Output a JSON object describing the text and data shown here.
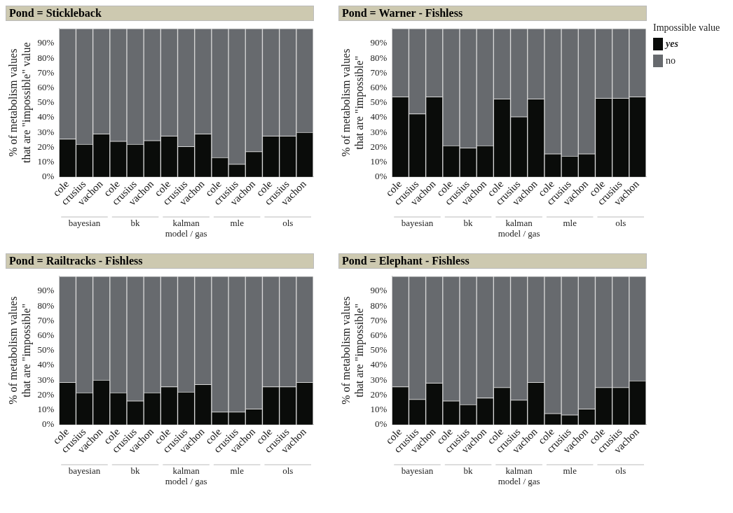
{
  "chart_data": [
    {
      "type": "bar",
      "title": "Pond = Stickleback",
      "xlabel": "model / gas",
      "ylabel": "% of metabolism values\nthat are \"impossible\" value",
      "categories": [
        "cole",
        "crusius",
        "vachon",
        "cole",
        "crusius",
        "vachon",
        "cole",
        "crusius",
        "vachon",
        "cole",
        "crusius",
        "vachon",
        "cole",
        "crusius",
        "vachon"
      ],
      "annotations": [
        "bayesian",
        "bk",
        "kalman",
        "mle",
        "ols"
      ],
      "stacked": true,
      "ylim": [
        0,
        100
      ],
      "yticks": [
        {
          "value": 0,
          "label": "0%"
        },
        {
          "value": 10,
          "label": "10%"
        },
        {
          "value": 20,
          "label": "20%"
        },
        {
          "value": 30,
          "label": "30%"
        },
        {
          "value": 40,
          "label": "40%"
        },
        {
          "value": 50,
          "label": "50%"
        },
        {
          "value": 60,
          "label": "60%"
        },
        {
          "value": 70,
          "label": "70%"
        },
        {
          "value": 80,
          "label": "80%"
        },
        {
          "value": 90,
          "label": "90%"
        }
      ],
      "grid": false,
      "legend": false,
      "series": [
        {
          "color": "#0a0c0a",
          "values": [
            25.5,
            22,
            29,
            24,
            22,
            24.5,
            27.5,
            20.5,
            29,
            13,
            8.5,
            17,
            27.5,
            27.5,
            30
          ]
        },
        {
          "color": "#676a6e",
          "values": [
            74.5,
            78,
            71,
            76,
            78,
            75.5,
            72.5,
            79.5,
            71,
            87,
            91.5,
            83,
            72.5,
            72.5,
            70
          ]
        }
      ]
    },
    {
      "type": "bar",
      "title": "Pond = Warner - Fishless",
      "xlabel": "model / gas",
      "ylabel": "% of metabolism values\nthat are \"impossible\"",
      "categories": [
        "cole",
        "crusius",
        "vachon",
        "cole",
        "crusius",
        "vachon",
        "cole",
        "crusius",
        "vachon",
        "cole",
        "crusius",
        "vachon",
        "cole",
        "crusius",
        "vachon"
      ],
      "annotations": [
        "bayesian",
        "bk",
        "kalman",
        "mle",
        "ols"
      ],
      "stacked": true,
      "ylim": [
        0,
        100
      ],
      "yticks": [
        {
          "value": 0,
          "label": "0%"
        },
        {
          "value": 10,
          "label": "10%"
        },
        {
          "value": 20,
          "label": "20%"
        },
        {
          "value": 30,
          "label": "30%"
        },
        {
          "value": 40,
          "label": "40%"
        },
        {
          "value": 50,
          "label": "50%"
        },
        {
          "value": 60,
          "label": "60%"
        },
        {
          "value": 70,
          "label": "70%"
        },
        {
          "value": 80,
          "label": "80%"
        },
        {
          "value": 90,
          "label": "90%"
        }
      ],
      "grid": false,
      "legend": "right",
      "legend_title": "Impossible value",
      "series": [
        {
          "name": "yes",
          "color": "#0a0c0a",
          "values": [
            54,
            42.5,
            54,
            21,
            19.5,
            21,
            52.5,
            40.5,
            52.5,
            15.5,
            14,
            15.5,
            53,
            53,
            54
          ]
        },
        {
          "name": "no",
          "color": "#676a6e",
          "values": [
            46,
            57.5,
            46,
            79,
            80.5,
            79,
            47.5,
            59.5,
            47.5,
            84.5,
            86,
            84.5,
            47,
            47,
            46
          ]
        }
      ]
    },
    {
      "type": "bar",
      "title": "Pond = Railtracks - Fishless",
      "xlabel": "model / gas",
      "ylabel": "% of metabolism values\nthat are \"impossible\"",
      "categories": [
        "cole",
        "crusius",
        "vachon",
        "cole",
        "crusius",
        "vachon",
        "cole",
        "crusius",
        "vachon",
        "cole",
        "crusius",
        "vachon",
        "cole",
        "crusius",
        "vachon"
      ],
      "annotations": [
        "bayesian",
        "bk",
        "kalman",
        "mle",
        "ols"
      ],
      "stacked": true,
      "ylim": [
        0,
        100
      ],
      "yticks": [
        {
          "value": 0,
          "label": "0%"
        },
        {
          "value": 10,
          "label": "10%"
        },
        {
          "value": 20,
          "label": "20%"
        },
        {
          "value": 30,
          "label": "30%"
        },
        {
          "value": 40,
          "label": "40%"
        },
        {
          "value": 50,
          "label": "50%"
        },
        {
          "value": 60,
          "label": "60%"
        },
        {
          "value": 70,
          "label": "70%"
        },
        {
          "value": 80,
          "label": "80%"
        },
        {
          "value": 90,
          "label": "90%"
        }
      ],
      "grid": false,
      "legend": false,
      "series": [
        {
          "color": "#0a0c0a",
          "values": [
            28.5,
            21.5,
            30,
            21.5,
            16,
            21.5,
            25.5,
            22,
            27,
            8.5,
            8.5,
            10.5,
            25.5,
            25.5,
            28.5
          ]
        },
        {
          "color": "#676a6e",
          "values": [
            71.5,
            78.5,
            70,
            78.5,
            84,
            78.5,
            74.5,
            78,
            73,
            91.5,
            91.5,
            89.5,
            74.5,
            74.5,
            71.5
          ]
        }
      ]
    },
    {
      "type": "bar",
      "title": "Pond = Elephant - Fishless",
      "xlabel": "model / gas",
      "ylabel": "% of metabolism values\nthat are \"impossible\"",
      "categories": [
        "cole",
        "crusius",
        "vachon",
        "cole",
        "crusius",
        "vachon",
        "cole",
        "crusius",
        "vachon",
        "cole",
        "crusius",
        "vachon",
        "cole",
        "crusius",
        "vachon"
      ],
      "annotations": [
        "bayesian",
        "bk",
        "kalman",
        "mle",
        "ols"
      ],
      "stacked": true,
      "ylim": [
        0,
        100
      ],
      "yticks": [
        {
          "value": 0,
          "label": "0%"
        },
        {
          "value": 10,
          "label": "10%"
        },
        {
          "value": 20,
          "label": "20%"
        },
        {
          "value": 30,
          "label": "30%"
        },
        {
          "value": 40,
          "label": "40%"
        },
        {
          "value": 50,
          "label": "50%"
        },
        {
          "value": 60,
          "label": "60%"
        },
        {
          "value": 70,
          "label": "70%"
        },
        {
          "value": 80,
          "label": "80%"
        },
        {
          "value": 90,
          "label": "90%"
        }
      ],
      "grid": false,
      "legend": false,
      "series": [
        {
          "color": "#0a0c0a",
          "values": [
            25.5,
            17,
            28,
            16,
            13.5,
            18,
            25,
            16.5,
            28.5,
            7.5,
            6.5,
            10.5,
            25,
            25,
            29.5
          ]
        },
        {
          "color": "#676a6e",
          "values": [
            74.5,
            83,
            72,
            84,
            86.5,
            82,
            75,
            83.5,
            71.5,
            92.5,
            93.5,
            89.5,
            75,
            75,
            70.5
          ]
        }
      ]
    }
  ]
}
